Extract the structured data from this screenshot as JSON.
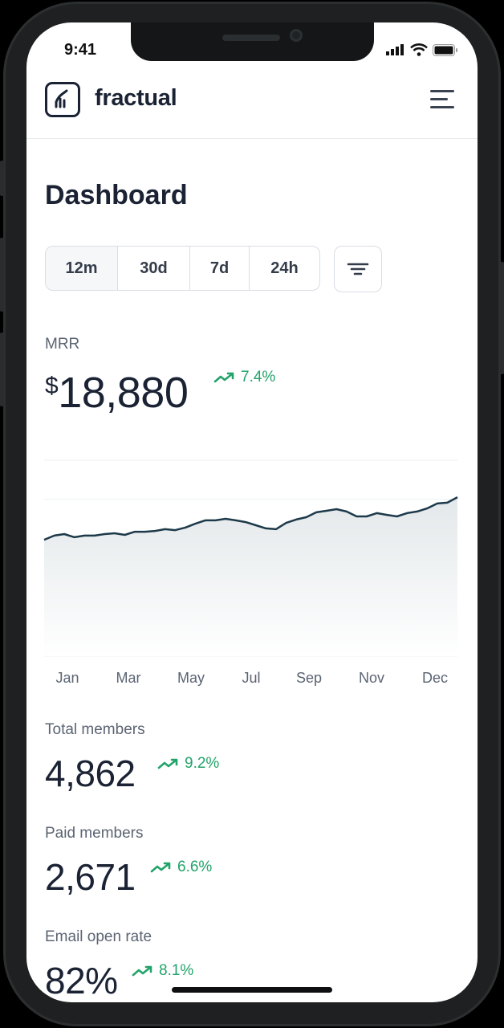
{
  "status_bar": {
    "time": "9:41",
    "icons": [
      "signal-icon",
      "wifi-icon",
      "battery-icon"
    ]
  },
  "header": {
    "brand": "fractual",
    "logo_icon": "chart-bars-icon",
    "menu_icon": "hamburger-menu-icon"
  },
  "page_title": "Dashboard",
  "range_tabs": [
    {
      "label": "12m",
      "active": true
    },
    {
      "label": "30d",
      "active": false
    },
    {
      "label": "7d",
      "active": false
    },
    {
      "label": "24h",
      "active": false
    }
  ],
  "filter_icon": "filter-icon",
  "mrr": {
    "label": "MRR",
    "currency": "$",
    "value": "18,880",
    "delta": "7.4%"
  },
  "colors": {
    "accent_green": "#22a36a",
    "text_dark": "#1a2233",
    "line": "#1d3a4a"
  },
  "chart_data": {
    "type": "area",
    "x_tick_labels": [
      "Jan",
      "Mar",
      "May",
      "Jul",
      "Sep",
      "Nov",
      "Dec"
    ],
    "ylim": [
      0,
      100
    ],
    "grid": true,
    "values": [
      59.4,
      61.5,
      62.3,
      60.7,
      61.5,
      61.5,
      62.3,
      62.7,
      61.9,
      63.5,
      63.5,
      63.9,
      64.8,
      64.3,
      65.6,
      67.6,
      69.3,
      69.3,
      70.1,
      69.3,
      68.4,
      66.8,
      65.2,
      64.8,
      68.0,
      69.7,
      70.9,
      73.4,
      74.2,
      75.0,
      73.8,
      71.3,
      71.3,
      73.0,
      72.1,
      71.3,
      73.0,
      73.8,
      75.4,
      77.9,
      78.3,
      81.1
    ]
  },
  "stats": [
    {
      "label": "Total members",
      "value": "4,862",
      "delta": "9.2%"
    },
    {
      "label": "Paid members",
      "value": "2,671",
      "delta": "6.6%"
    },
    {
      "label": "Email open rate",
      "value": "82%",
      "delta": "8.1%"
    }
  ]
}
